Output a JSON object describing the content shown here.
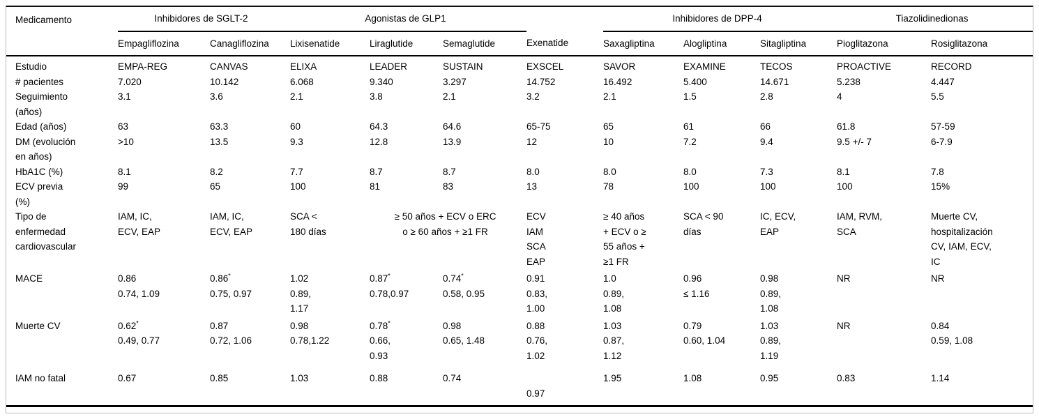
{
  "table": {
    "corner_label": "Medicamento",
    "groups": [
      {
        "label": "Inhibidores de SGLT-2",
        "span": 2,
        "underline": true
      },
      {
        "label": "Agonistas de GLP1",
        "span": 3,
        "underline": true
      },
      {
        "label": "",
        "span": 1,
        "underline": false
      },
      {
        "label": "Inhibidores de DPP-4",
        "span": 3,
        "underline": true
      },
      {
        "label": "Tiazolidinedionas",
        "span": 2,
        "underline": true
      }
    ],
    "drugs": [
      "Empagliflozina",
      "Canagliflozina",
      "Lixisenatide",
      "Liraglutide",
      "Semaglutide",
      "Exenatide",
      "Saxagliptina",
      "Alogliptina",
      "Sitagliptina",
      "Pioglitazona",
      "Rosiglitazona"
    ],
    "rows": [
      {
        "key": "estudio",
        "label": [
          "Estudio"
        ],
        "cells": [
          {
            "lines": [
              "EMPA-REG"
            ]
          },
          {
            "lines": [
              "CANVAS"
            ]
          },
          {
            "lines": [
              "ELIXA"
            ]
          },
          {
            "lines": [
              "LEADER"
            ]
          },
          {
            "lines": [
              "SUSTAIN"
            ]
          },
          {
            "lines": [
              "EXSCEL"
            ]
          },
          {
            "lines": [
              "SAVOR"
            ]
          },
          {
            "lines": [
              "EXAMINE"
            ]
          },
          {
            "lines": [
              "TECOS"
            ]
          },
          {
            "lines": [
              "PROACTIVE"
            ]
          },
          {
            "lines": [
              "RECORD"
            ]
          }
        ]
      },
      {
        "key": "pacientes",
        "label": [
          "# pacientes"
        ],
        "cells": [
          {
            "lines": [
              "7.020"
            ]
          },
          {
            "lines": [
              "10.142"
            ]
          },
          {
            "lines": [
              "6.068"
            ]
          },
          {
            "lines": [
              "9.340"
            ]
          },
          {
            "lines": [
              "3.297"
            ]
          },
          {
            "lines": [
              "14.752"
            ]
          },
          {
            "lines": [
              "16.492"
            ]
          },
          {
            "lines": [
              "5.400"
            ]
          },
          {
            "lines": [
              "14.671"
            ]
          },
          {
            "lines": [
              "5.238"
            ]
          },
          {
            "lines": [
              "4.447"
            ]
          }
        ]
      },
      {
        "key": "seguimiento",
        "label": [
          "Seguimiento",
          "(años)"
        ],
        "cells": [
          {
            "lines": [
              "3.1"
            ]
          },
          {
            "lines": [
              "3.6"
            ]
          },
          {
            "lines": [
              "2.1"
            ]
          },
          {
            "lines": [
              "3.8"
            ]
          },
          {
            "lines": [
              "2.1"
            ]
          },
          {
            "lines": [
              "3.2"
            ]
          },
          {
            "lines": [
              "2.1"
            ]
          },
          {
            "lines": [
              "1.5"
            ]
          },
          {
            "lines": [
              "2.8"
            ]
          },
          {
            "lines": [
              "4"
            ]
          },
          {
            "lines": [
              "5.5"
            ]
          }
        ]
      },
      {
        "key": "edad",
        "label": [
          "Edad (años)"
        ],
        "cells": [
          {
            "lines": [
              "63"
            ]
          },
          {
            "lines": [
              "63.3"
            ]
          },
          {
            "lines": [
              "60"
            ]
          },
          {
            "lines": [
              "64.3"
            ]
          },
          {
            "lines": [
              "64.6"
            ]
          },
          {
            "lines": [
              "65-75"
            ]
          },
          {
            "lines": [
              "65"
            ]
          },
          {
            "lines": [
              "61"
            ]
          },
          {
            "lines": [
              "66"
            ]
          },
          {
            "lines": [
              "61.8"
            ]
          },
          {
            "lines": [
              "57-59"
            ]
          }
        ]
      },
      {
        "key": "dm-evolucion",
        "label": [
          "DM (evolución",
          "en años)"
        ],
        "cells": [
          {
            "lines": [
              ">10"
            ]
          },
          {
            "lines": [
              "13.5"
            ]
          },
          {
            "lines": [
              "9.3"
            ]
          },
          {
            "lines": [
              "12.8"
            ]
          },
          {
            "lines": [
              "13.9"
            ]
          },
          {
            "lines": [
              "12"
            ]
          },
          {
            "lines": [
              "10"
            ]
          },
          {
            "lines": [
              "7.2"
            ]
          },
          {
            "lines": [
              "9.4"
            ]
          },
          {
            "lines": [
              "9.5 +/- 7"
            ]
          },
          {
            "lines": [
              "6-7.9"
            ]
          }
        ]
      },
      {
        "key": "hba1c",
        "label": [
          "HbA1C (%)"
        ],
        "cells": [
          {
            "lines": [
              "8.1"
            ]
          },
          {
            "lines": [
              "8.2"
            ]
          },
          {
            "lines": [
              "7.7"
            ]
          },
          {
            "lines": [
              "8.7"
            ]
          },
          {
            "lines": [
              "8.7"
            ]
          },
          {
            "lines": [
              "8.0"
            ]
          },
          {
            "lines": [
              "8.0"
            ]
          },
          {
            "lines": [
              "8.0"
            ]
          },
          {
            "lines": [
              "7.3"
            ]
          },
          {
            "lines": [
              "8.1"
            ]
          },
          {
            "lines": [
              "7.8"
            ]
          }
        ]
      },
      {
        "key": "ecv-previa",
        "label": [
          "ECV previa",
          "(%)"
        ],
        "cells": [
          {
            "lines": [
              "99"
            ]
          },
          {
            "lines": [
              "65"
            ]
          },
          {
            "lines": [
              "100"
            ]
          },
          {
            "lines": [
              "81"
            ]
          },
          {
            "lines": [
              "83"
            ]
          },
          {
            "lines": [
              "13"
            ]
          },
          {
            "lines": [
              "78"
            ]
          },
          {
            "lines": [
              "100"
            ]
          },
          {
            "lines": [
              "100"
            ]
          },
          {
            "lines": [
              "100"
            ]
          },
          {
            "lines": [
              "15%"
            ]
          }
        ]
      },
      {
        "key": "tipo-ecv",
        "label": [
          "Tipo de",
          "enfermedad",
          "cardiovascular"
        ],
        "cells": [
          {
            "lines": [
              "IAM, IC,",
              "ECV, EAP"
            ]
          },
          {
            "lines": [
              "IAM, IC,",
              "ECV, EAP"
            ]
          },
          {
            "lines": [
              "SCA <",
              "180 días"
            ]
          },
          {
            "lines": [
              "≥ 50 años + ECV o ERC",
              "o ≥ 60 años + ≥1 FR"
            ],
            "span": 2,
            "center": true
          },
          {
            "lines": [
              "ECV",
              "IAM",
              "SCA",
              "EAP"
            ]
          },
          {
            "lines": [
              "≥ 40 años",
              "+ ECV o ≥",
              "55 años +",
              "≥1 FR"
            ]
          },
          {
            "lines": [
              "SCA < 90",
              "días"
            ]
          },
          {
            "lines": [
              "IC, ECV,",
              "EAP"
            ]
          },
          {
            "lines": [
              "IAM, RVM,",
              "SCA"
            ]
          },
          {
            "lines": [
              "Muerte CV,",
              "hospitalización",
              "CV, IAM, ECV,",
              "IC"
            ]
          }
        ]
      },
      {
        "key": "mace",
        "label": [
          "MACE"
        ],
        "cells": [
          {
            "lines": [
              "0.86",
              "0.74, 1.09"
            ]
          },
          {
            "lines": [
              "0.86*",
              "0.75, 0.97"
            ]
          },
          {
            "lines": [
              "1.02",
              "0.89,",
              "1.17"
            ]
          },
          {
            "lines": [
              "0.87*",
              "0.78,0.97"
            ]
          },
          {
            "lines": [
              "0.74*",
              "0.58, 0.95"
            ]
          },
          {
            "lines": [
              "0.91",
              "0.83,",
              "1.00"
            ]
          },
          {
            "lines": [
              "1.0",
              "0.89,",
              "1.08"
            ]
          },
          {
            "lines": [
              "0.96",
              "≤ 1.16"
            ]
          },
          {
            "lines": [
              "0.98",
              "0.89,",
              "1.08"
            ]
          },
          {
            "lines": [
              "NR"
            ]
          },
          {
            "lines": [
              "NR"
            ]
          }
        ]
      },
      {
        "key": "muerte-cv",
        "label": [
          "Muerte CV"
        ],
        "cells": [
          {
            "lines": [
              "0.62*",
              "0.49, 0.77"
            ]
          },
          {
            "lines": [
              "0.87",
              "0.72, 1.06"
            ]
          },
          {
            "lines": [
              "0.98",
              "0.78,1.22"
            ]
          },
          {
            "lines": [
              "0.78*",
              "0.66,",
              "0.93"
            ]
          },
          {
            "lines": [
              "0.98",
              "0.65, 1.48"
            ]
          },
          {
            "lines": [
              "0.88",
              "0.76,",
              "1.02"
            ]
          },
          {
            "lines": [
              "1.03",
              "0.87,",
              "1.12"
            ]
          },
          {
            "lines": [
              "0.79",
              "0.60, 1.04"
            ]
          },
          {
            "lines": [
              "1.03",
              "0.89,",
              "1.19"
            ]
          },
          {
            "lines": [
              "NR"
            ]
          },
          {
            "lines": [
              "0.84",
              "0.59, 1.08"
            ]
          }
        ]
      },
      {
        "key": "iam-no-fatal",
        "label": [
          "IAM no fatal"
        ],
        "cells": [
          {
            "lines": [
              "0.67"
            ]
          },
          {
            "lines": [
              "0.85"
            ]
          },
          {
            "lines": [
              "1.03"
            ]
          },
          {
            "lines": [
              "0.88"
            ]
          },
          {
            "lines": [
              "0.74"
            ]
          },
          {
            "lines": [
              "",
              "0.97"
            ]
          },
          {
            "lines": [
              "1.95"
            ]
          },
          {
            "lines": [
              "1.08"
            ]
          },
          {
            "lines": [
              "0.95"
            ]
          },
          {
            "lines": [
              "0.83"
            ]
          },
          {
            "lines": [
              "1.14"
            ]
          }
        ]
      }
    ]
  }
}
